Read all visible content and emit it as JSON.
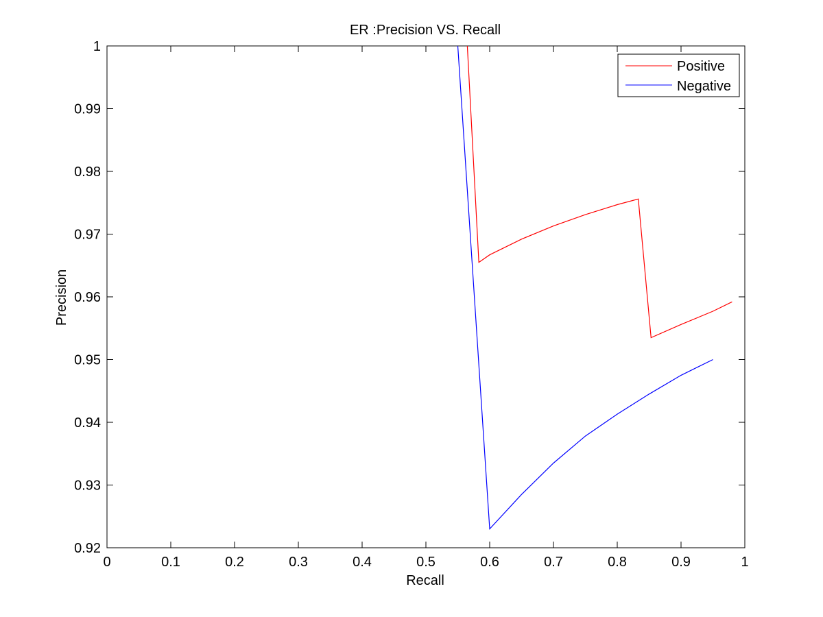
{
  "chart_data": {
    "type": "line",
    "title": "ER :Precision VS. Recall",
    "xlabel": "Recall",
    "ylabel": "Precision",
    "xlim": [
      0,
      1
    ],
    "ylim": [
      0.92,
      1
    ],
    "xticks": [
      0,
      0.1,
      0.2,
      0.3,
      0.4,
      0.5,
      0.6,
      0.7,
      0.8,
      0.9,
      1
    ],
    "xtick_labels": [
      "0",
      "0.1",
      "0.2",
      "0.3",
      "0.4",
      "0.5",
      "0.6",
      "0.7",
      "0.8",
      "0.9",
      "1"
    ],
    "yticks": [
      0.92,
      0.93,
      0.94,
      0.95,
      0.96,
      0.97,
      0.98,
      0.99,
      1
    ],
    "ytick_labels": [
      "0.92",
      "0.93",
      "0.94",
      "0.95",
      "0.96",
      "0.97",
      "0.98",
      "0.99",
      "1"
    ],
    "grid": false,
    "legend_position": "top-right",
    "series": [
      {
        "name": "Positive",
        "color": "#ff0000",
        "x": [
          0.565,
          0.583,
          0.6,
          0.65,
          0.7,
          0.75,
          0.8,
          0.833,
          0.853,
          0.9,
          0.95,
          0.98
        ],
        "y": [
          1.0,
          0.9655,
          0.9667,
          0.9692,
          0.9713,
          0.9731,
          0.9747,
          0.9756,
          0.9535,
          0.9556,
          0.9577,
          0.9592
        ]
      },
      {
        "name": "Negative",
        "color": "#0000ff",
        "x": [
          0.55,
          0.6,
          0.65,
          0.7,
          0.75,
          0.8,
          0.85,
          0.9,
          0.95
        ],
        "y": [
          1.0,
          0.923,
          0.9285,
          0.9335,
          0.9378,
          0.9413,
          0.9445,
          0.9475,
          0.95
        ]
      }
    ]
  }
}
